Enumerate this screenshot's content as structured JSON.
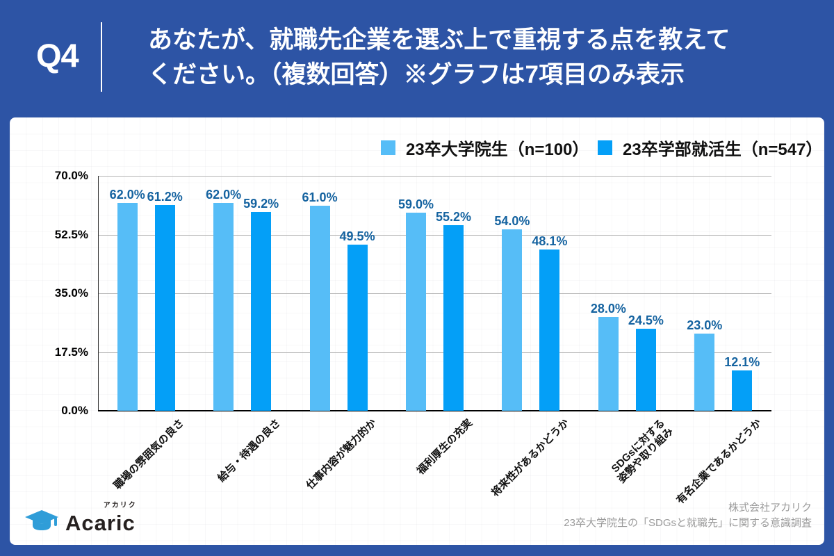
{
  "header": {
    "qnum": "Q4",
    "title_line1": "あなたが、就職先企業を選ぶ上で重視する点を教えて",
    "title_line2": "ください。（複数回答）※グラフは7項目のみ表示"
  },
  "chart_data": {
    "type": "bar",
    "categories": [
      "職場の雰囲気の良さ",
      "給与・待遇の良さ",
      "仕事内容が魅力的か",
      "福利厚生の充実",
      "将来性があるかどうか",
      "SDGsに対する\n姿勢や取り組み",
      "有名企業であるかどうか"
    ],
    "series": [
      {
        "name": "23卒大学院生（n=100）",
        "color": "#56BDF7",
        "values": [
          62.0,
          62.0,
          61.0,
          59.0,
          54.0,
          28.0,
          23.0
        ]
      },
      {
        "name": "23卒学部就活生（n=547）",
        "color": "#049FF7",
        "values": [
          61.2,
          59.2,
          49.5,
          55.2,
          48.1,
          24.5,
          12.1
        ]
      }
    ],
    "ylim": [
      0,
      70
    ],
    "yticks": [
      0,
      17.5,
      35,
      52.5,
      70
    ],
    "ytick_labels": [
      "0.0%",
      "17.5%",
      "35.0%",
      "52.5%",
      "70.0%"
    ],
    "grid": true,
    "legend_position": "top-right",
    "value_label_color": "#1563a0"
  },
  "logo": {
    "brand": "Acaric",
    "kana": "アカリク"
  },
  "footer": {
    "company": "株式会社アカリク",
    "survey": "23卒大学院生の「SDGsと就職先」に関する意識調査"
  }
}
